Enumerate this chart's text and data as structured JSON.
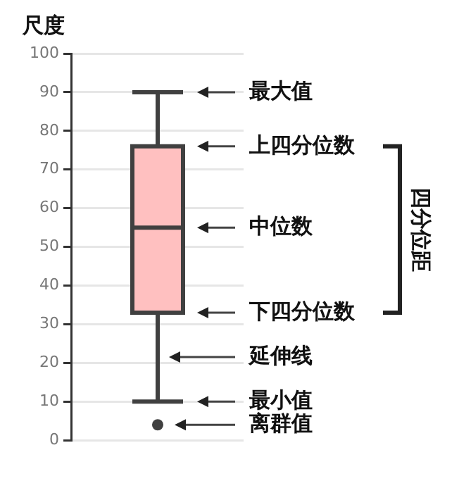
{
  "chart_data": {
    "type": "box",
    "ylabel": "尺度",
    "categories": [
      null
    ],
    "color": "#ffc0c0",
    "boxes": [
      {
        "low": 10,
        "q1": 33,
        "median": 55,
        "q3": 76,
        "high": 90,
        "outliers": [
          4
        ]
      }
    ],
    "ylim": [
      0,
      100
    ],
    "yticks": [
      0,
      10,
      20,
      30,
      40,
      50,
      60,
      70,
      80,
      90,
      100
    ],
    "grid": "y",
    "annotations": [
      "最大值",
      "上四分位数",
      "中位数",
      "下四分位数",
      "延伸线",
      "最小值",
      "离群值",
      "四分位距"
    ]
  }
}
